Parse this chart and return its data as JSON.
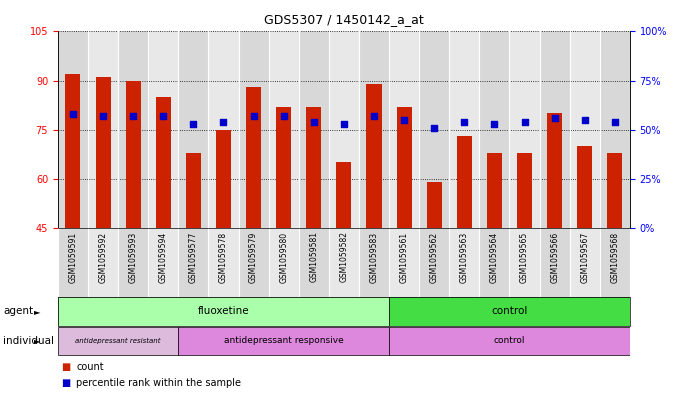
{
  "title": "GDS5307 / 1450142_a_at",
  "samples": [
    "GSM1059591",
    "GSM1059592",
    "GSM1059593",
    "GSM1059594",
    "GSM1059577",
    "GSM1059578",
    "GSM1059579",
    "GSM1059580",
    "GSM1059581",
    "GSM1059582",
    "GSM1059583",
    "GSM1059561",
    "GSM1059562",
    "GSM1059563",
    "GSM1059564",
    "GSM1059565",
    "GSM1059566",
    "GSM1059567",
    "GSM1059568"
  ],
  "counts": [
    92,
    91,
    90,
    85,
    68,
    75,
    88,
    82,
    82,
    65,
    89,
    82,
    59,
    73,
    68,
    68,
    80,
    70,
    68
  ],
  "percentiles": [
    58,
    57,
    57,
    57,
    53,
    54,
    57,
    57,
    54,
    53,
    57,
    55,
    51,
    54,
    53,
    54,
    56,
    55,
    54
  ],
  "ylim_left": [
    45,
    105
  ],
  "ylim_right": [
    0,
    100
  ],
  "yticks_left": [
    45,
    60,
    75,
    90,
    105
  ],
  "yticks_right": [
    0,
    25,
    50,
    75,
    100
  ],
  "ytick_labels_right": [
    "0%",
    "25%",
    "50%",
    "75%",
    "100%"
  ],
  "bar_color": "#CC2200",
  "dot_color": "#0000CC",
  "bar_width": 0.5,
  "dot_size": 25,
  "cell_bg_even": "#D8D8D8",
  "cell_bg_odd": "#E8E8E8",
  "plot_bg": "#FFFFFF",
  "agent_flu_color": "#AAFFAA",
  "agent_ctrl_color": "#44DD44",
  "ind_resist_color": "#DDBBDD",
  "ind_resp_color": "#DD88DD",
  "ind_ctrl_color": "#DD88DD",
  "fluoxetine_count": 11,
  "resistant_count": 4,
  "responsive_count": 7,
  "control_count": 8
}
